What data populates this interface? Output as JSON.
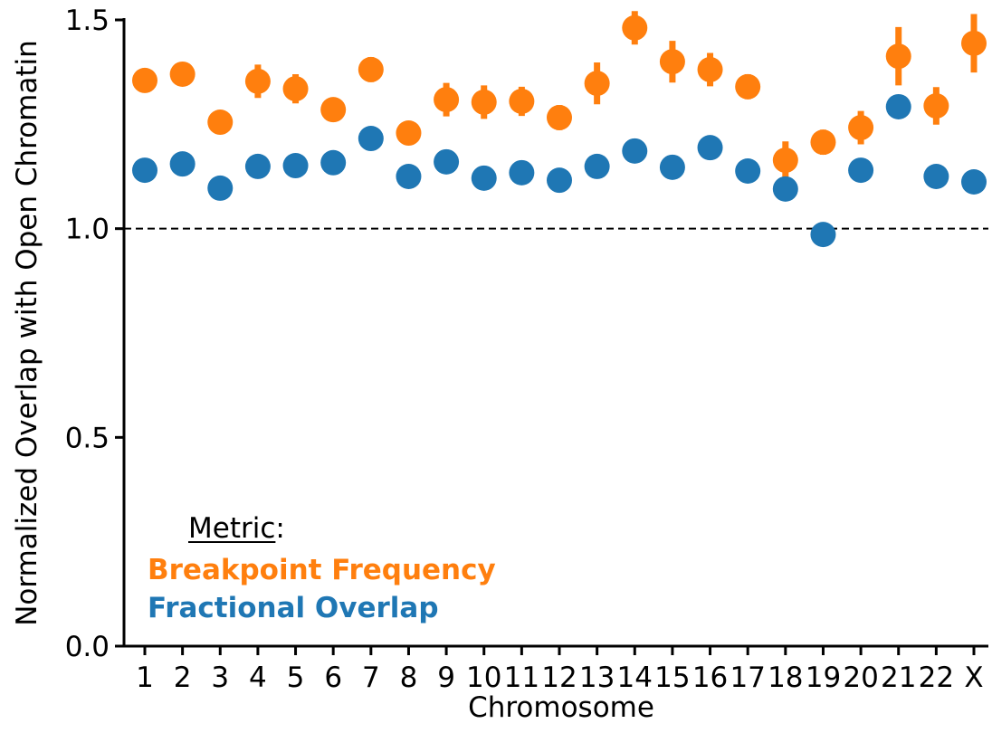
{
  "chart_data": {
    "type": "scatter",
    "xlabel": "Chromosome",
    "ylabel": "Normalized Overlap with Open Chromatin",
    "categories": [
      "1",
      "2",
      "3",
      "4",
      "5",
      "6",
      "7",
      "8",
      "9",
      "10",
      "11",
      "12",
      "13",
      "14",
      "15",
      "16",
      "17",
      "18",
      "19",
      "20",
      "21",
      "22",
      "X"
    ],
    "series": [
      {
        "name": "Breakpoint Frequency",
        "color": "#ff7f0e",
        "values": [
          1.355,
          1.37,
          1.255,
          1.353,
          1.335,
          1.285,
          1.381,
          1.229,
          1.309,
          1.303,
          1.305,
          1.266,
          1.348,
          1.481,
          1.4,
          1.381,
          1.34,
          1.164,
          1.207,
          1.242,
          1.413,
          1.294,
          1.444
        ],
        "errors": [
          0.02,
          0.025,
          0.02,
          0.04,
          0.035,
          0.02,
          0.03,
          0.02,
          0.04,
          0.04,
          0.035,
          0.03,
          0.05,
          0.04,
          0.05,
          0.04,
          0.03,
          0.045,
          0.03,
          0.04,
          0.07,
          0.045,
          0.07
        ]
      },
      {
        "name": "Fractional Overlap",
        "color": "#1f77b4",
        "values": [
          1.14,
          1.155,
          1.097,
          1.149,
          1.151,
          1.158,
          1.216,
          1.125,
          1.16,
          1.121,
          1.134,
          1.116,
          1.149,
          1.186,
          1.147,
          1.194,
          1.138,
          1.095,
          0.986,
          1.14,
          1.292,
          1.125,
          1.112
        ]
      }
    ],
    "legend_title": "Metric:",
    "reference_line": 1,
    "ylim": [
      0,
      1.5
    ],
    "yticks": [
      {
        "value": 0,
        "label": "0.0"
      },
      {
        "value": 0.5,
        "label": "0.5"
      },
      {
        "value": 1,
        "label": "1.0"
      },
      {
        "value": 1.5,
        "label": "1.5"
      }
    ]
  }
}
